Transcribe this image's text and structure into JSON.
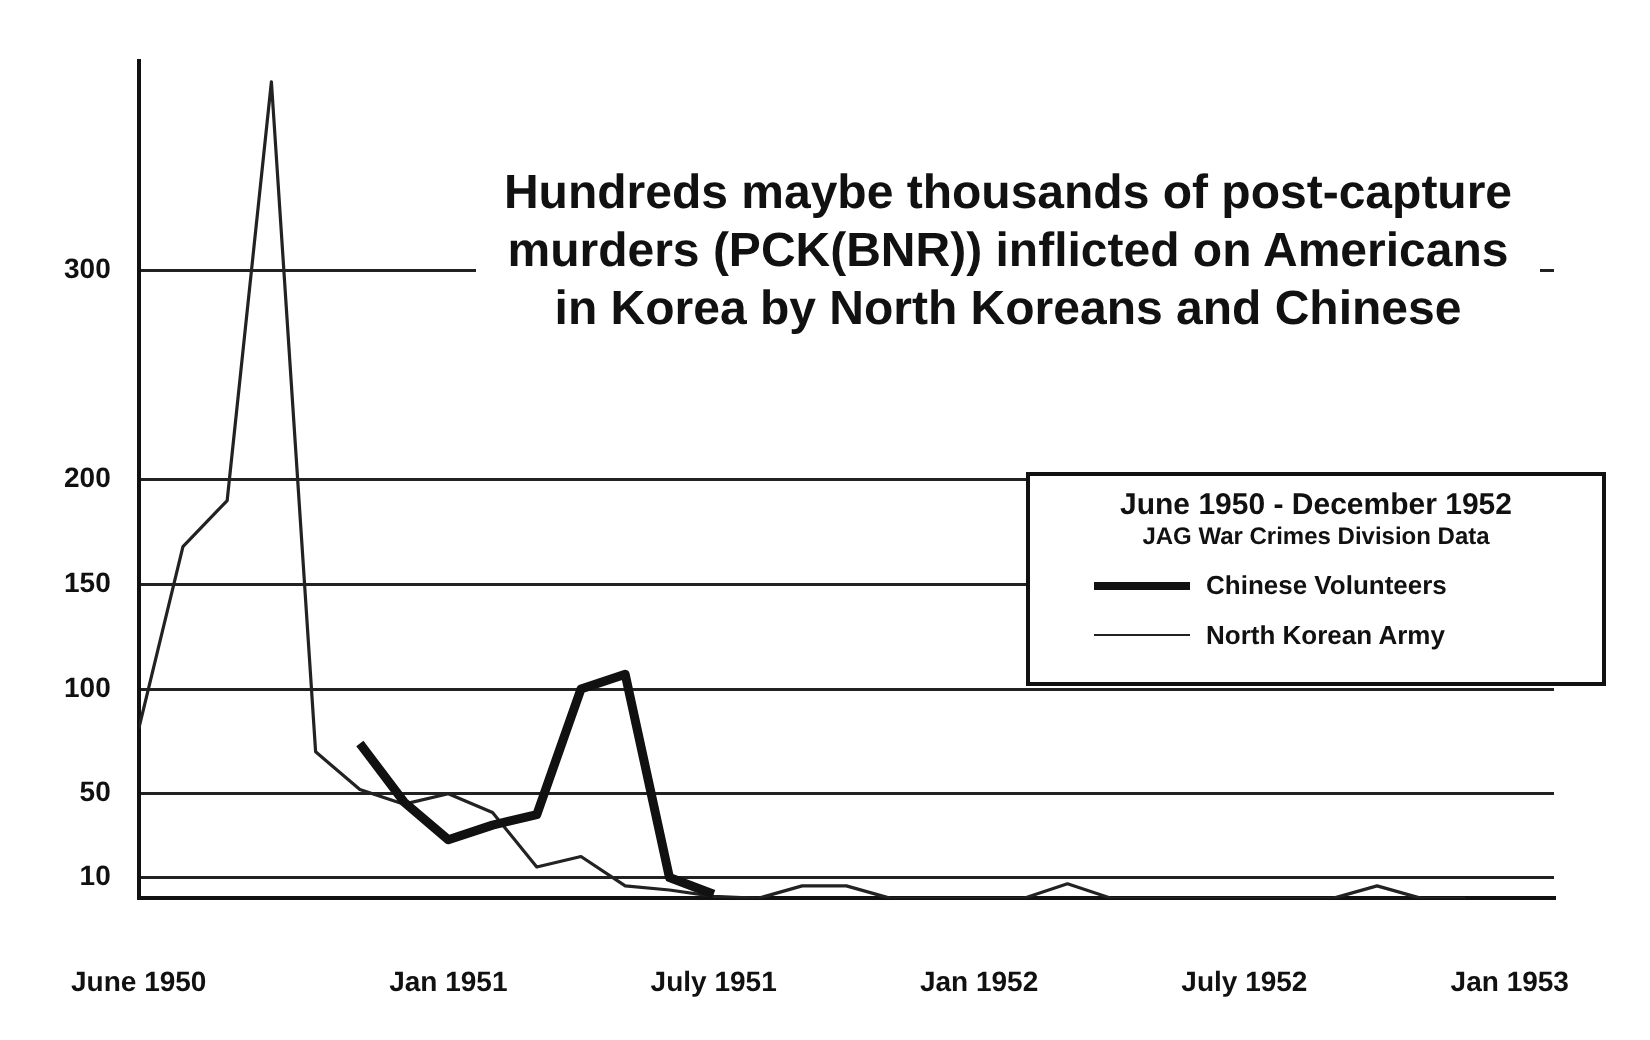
{
  "chart_data": {
    "type": "line",
    "title": "Hundreds maybe thousands of post-capture murders (PCK(BNR)) inflicted on Americans in Korea by North Koreans and Chinese",
    "legend_title": "June 1950 - December 1952",
    "annotations": [
      "JAG War Crimes Division Data"
    ],
    "series": [
      {
        "name": "Chinese Volunteers",
        "color": "#111111",
        "x": [
          "1950-11",
          "1950-12",
          "1951-01",
          "1951-02",
          "1951-03",
          "1951-04",
          "1951-05",
          "1951-06",
          "1951-07"
        ],
        "values": [
          74,
          46,
          28,
          35,
          40,
          100,
          107,
          10,
          2
        ]
      },
      {
        "name": "North Korean Army",
        "color": "#222222",
        "x": [
          "1950-06",
          "1950-07",
          "1950-08",
          "1950-09",
          "1950-10",
          "1950-11",
          "1950-12",
          "1951-01",
          "1951-02",
          "1951-03",
          "1951-04",
          "1951-05",
          "1951-06",
          "1951-07",
          "1951-08",
          "1951-09",
          "1951-10",
          "1951-11",
          "1951-12",
          "1952-01",
          "1952-02",
          "1952-03",
          "1952-04",
          "1952-05",
          "1952-06",
          "1952-07",
          "1952-08",
          "1952-09",
          "1952-10",
          "1952-11",
          "1952-12"
        ],
        "values": [
          81,
          168,
          190,
          390,
          70,
          52,
          45,
          50,
          41,
          15,
          20,
          6,
          4,
          1,
          0,
          6,
          6,
          0,
          0,
          0,
          0,
          7,
          0,
          0,
          0,
          0,
          0,
          0,
          6,
          0,
          0
        ]
      }
    ],
    "xlim": [
      "1950-06",
      "1953-02"
    ],
    "xticks": [
      {
        "value": "1950-06",
        "label": "June 1950"
      },
      {
        "value": "1951-01",
        "label": "Jan 1951"
      },
      {
        "value": "1951-07",
        "label": "July 1951"
      },
      {
        "value": "1952-01",
        "label": "Jan 1952"
      },
      {
        "value": "1952-07",
        "label": "July 1952"
      },
      {
        "value": "1953-01",
        "label": "Jan 1953"
      }
    ],
    "ylim": [
      0,
      400
    ],
    "yticks": [
      10,
      50,
      100,
      150,
      200,
      300
    ],
    "grid": "y",
    "legend": "right",
    "marker": "none",
    "line_style": "solid"
  }
}
